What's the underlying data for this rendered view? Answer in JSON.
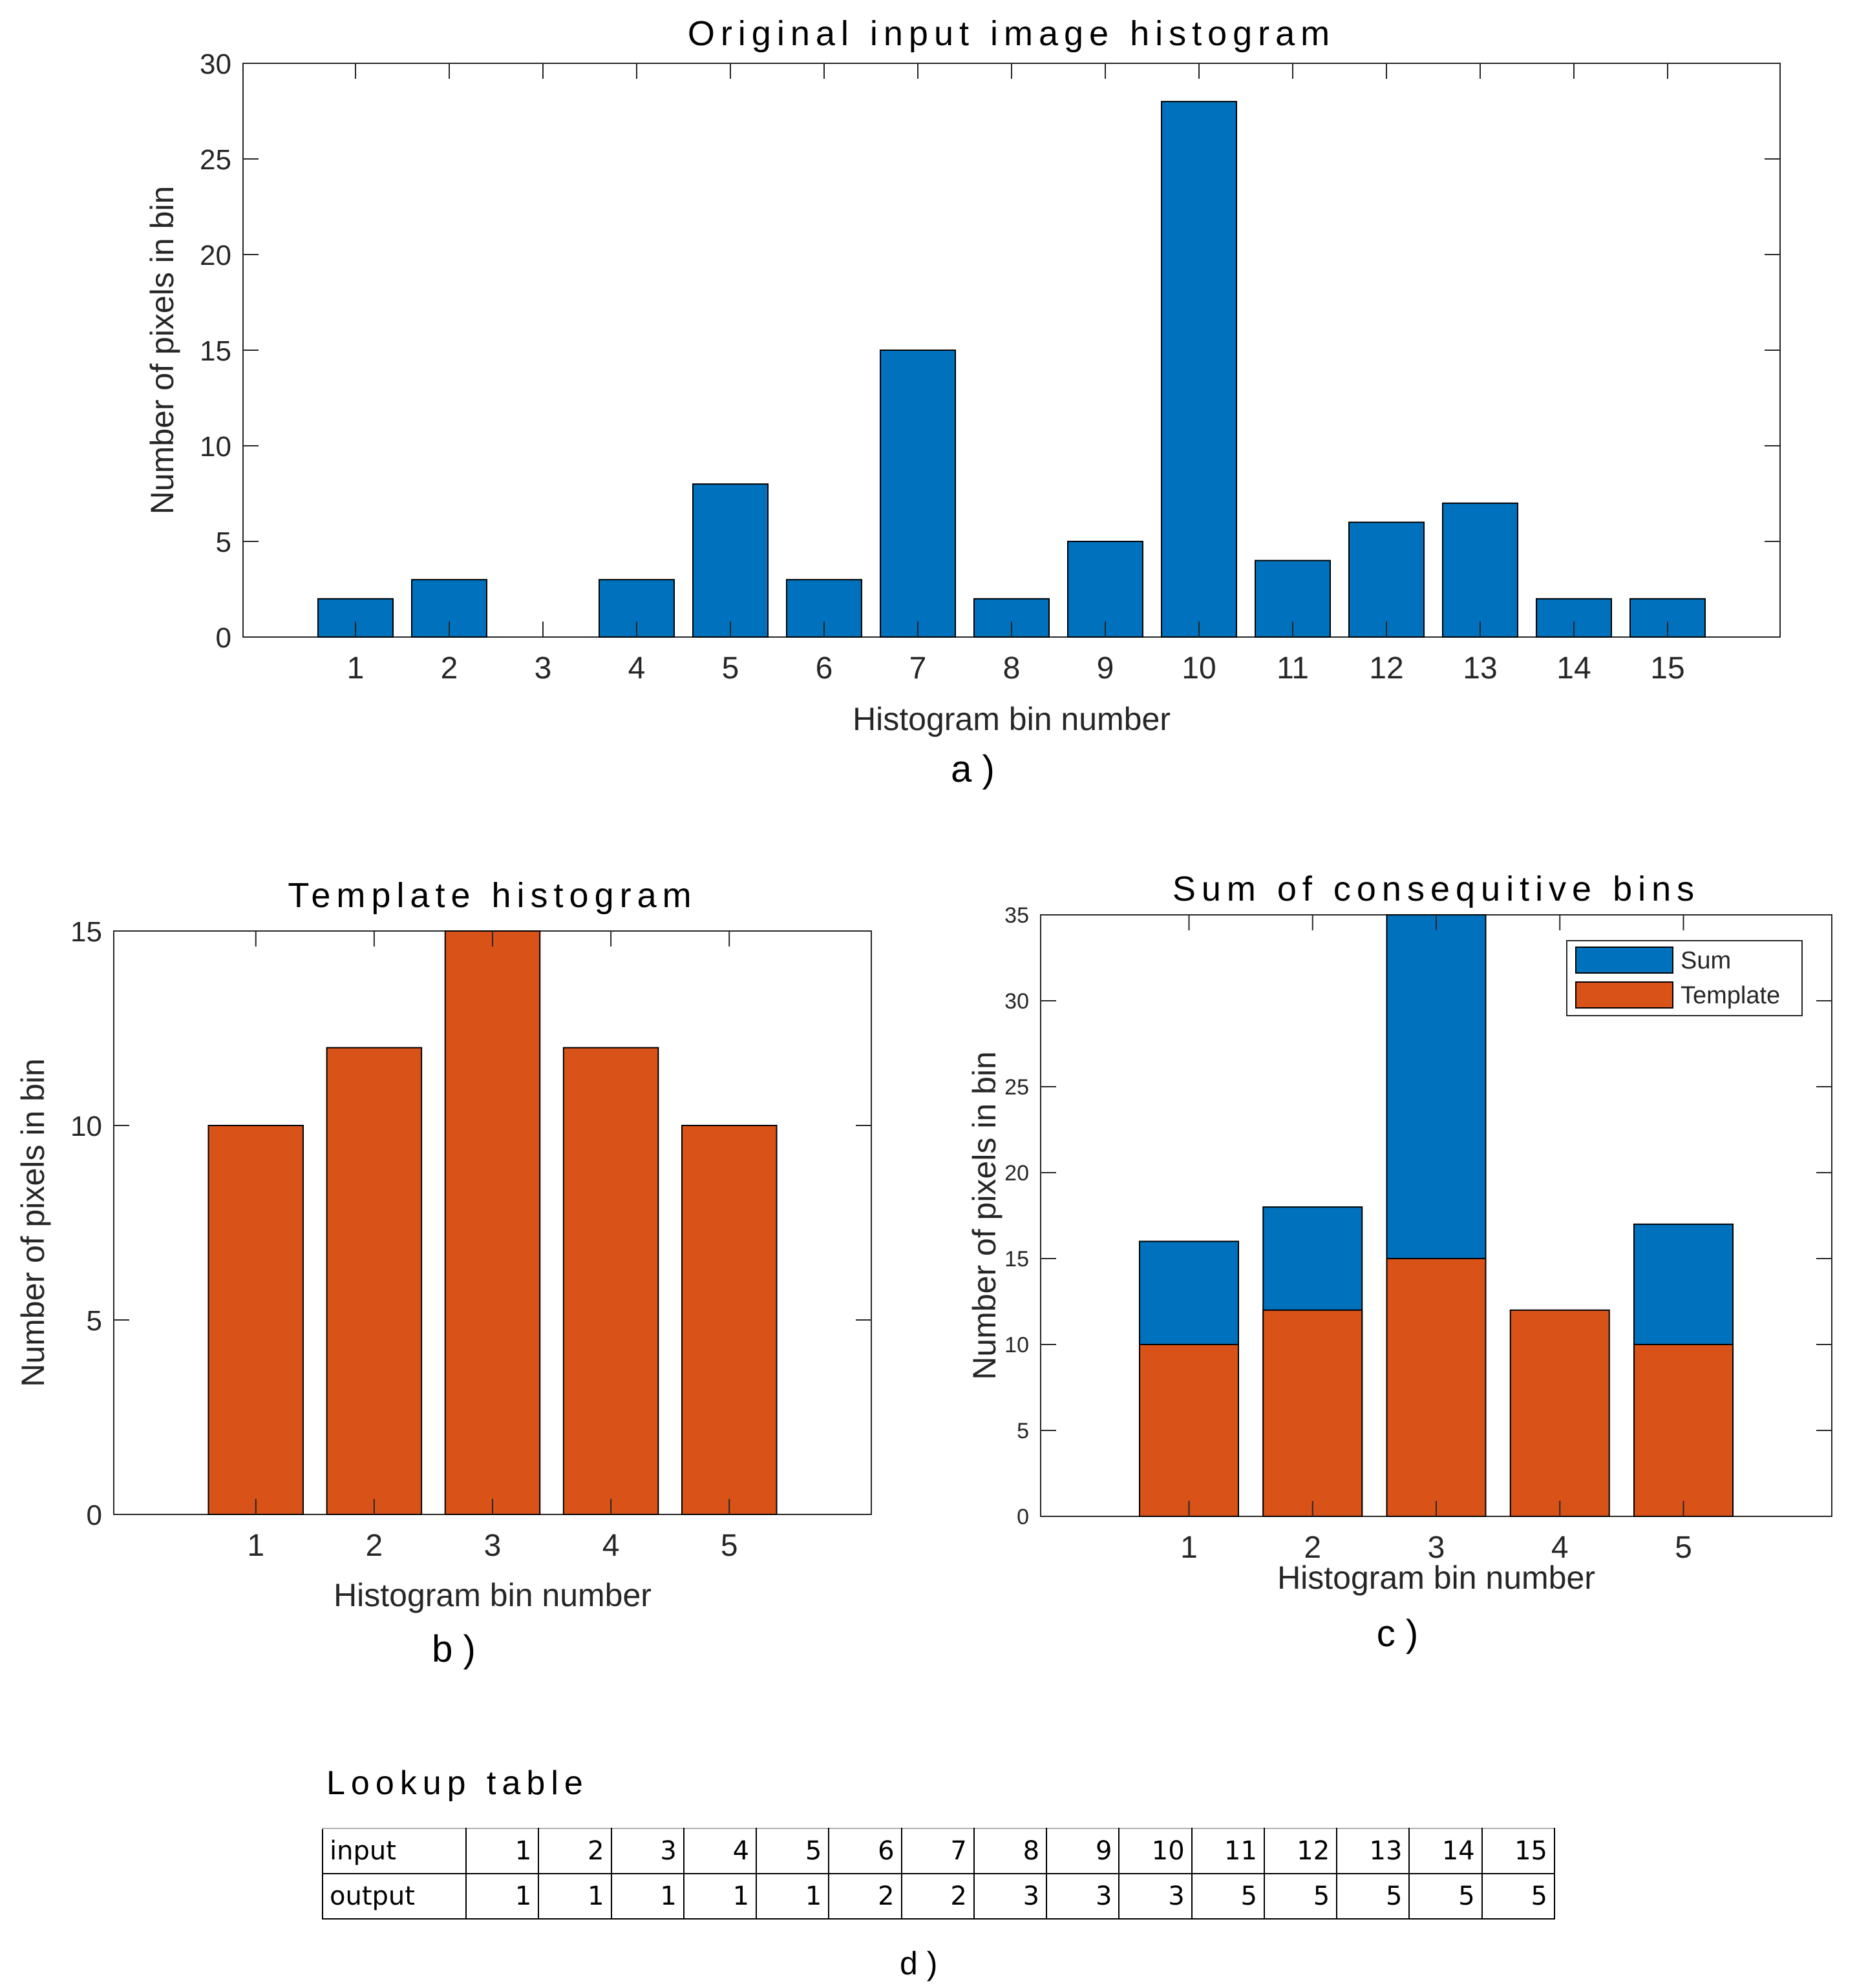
{
  "chart_data": [
    {
      "id": "a",
      "type": "bar",
      "title": "Original input image histogram",
      "xlabel": "Histogram bin number",
      "ylabel": "Number of pixels in bin",
      "panel_label": "a )",
      "categories": [
        "1",
        "2",
        "3",
        "4",
        "5",
        "6",
        "7",
        "8",
        "9",
        "10",
        "11",
        "12",
        "13",
        "14",
        "15"
      ],
      "values": [
        2,
        3,
        0,
        3,
        8,
        3,
        15,
        2,
        5,
        28,
        4,
        6,
        7,
        2,
        2
      ],
      "ylim": [
        0,
        30
      ],
      "yticks": [
        0,
        5,
        10,
        15,
        20,
        25,
        30
      ],
      "xlim": [
        -0.2,
        16.2
      ],
      "color": "#0072BD"
    },
    {
      "id": "b",
      "type": "bar",
      "title": "Template histogram",
      "xlabel": "Histogram bin number",
      "ylabel": "Number of pixels in bin",
      "panel_label": "b )",
      "categories": [
        "1",
        "2",
        "3",
        "4",
        "5"
      ],
      "values": [
        10,
        12,
        15,
        12,
        10
      ],
      "ylim": [
        0,
        15
      ],
      "yticks": [
        0,
        5,
        10,
        15
      ],
      "xlim": [
        -0.2,
        6.2
      ],
      "color": "#D95319"
    },
    {
      "id": "c",
      "type": "bar",
      "title": "Sum of consequitive bins",
      "xlabel": "Histogram bin number",
      "ylabel": "Number of pixels in bin",
      "panel_label": "c )",
      "categories": [
        "1",
        "2",
        "3",
        "4",
        "5"
      ],
      "series": [
        {
          "name": "Sum",
          "values": [
            16,
            18,
            35,
            0,
            17
          ],
          "color": "#0072BD"
        },
        {
          "name": "Template",
          "values": [
            10,
            12,
            15,
            12,
            10
          ],
          "color": "#D95319"
        }
      ],
      "ylim": [
        0,
        35
      ],
      "yticks": [
        0,
        5,
        10,
        15,
        20,
        25,
        30,
        35
      ],
      "xlim": [
        -0.2,
        6.2
      ],
      "legend": "top-right"
    }
  ],
  "lookup_table": {
    "title": "Lookup table",
    "panel_label": "d )",
    "rows": [
      {
        "label": "input",
        "values": [
          "1",
          "2",
          "3",
          "4",
          "5",
          "6",
          "7",
          "8",
          "9",
          "10",
          "11",
          "12",
          "13",
          "14",
          "15"
        ]
      },
      {
        "label": "output",
        "values": [
          "1",
          "1",
          "1",
          "1",
          "1",
          "2",
          "2",
          "3",
          "3",
          "3",
          "5",
          "5",
          "5",
          "5",
          "5"
        ]
      }
    ]
  }
}
